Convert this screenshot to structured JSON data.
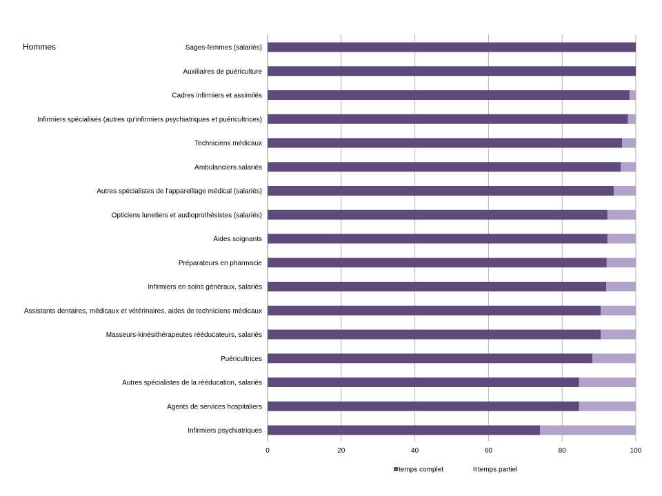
{
  "title": "Hommes",
  "colors": {
    "temps_complet": "#5e4a7d",
    "temps_partiel": "#b1a3c9",
    "grid": "#b3b3b3",
    "axis": "#8c8c8c"
  },
  "chart_data": {
    "type": "bar",
    "orientation": "horizontal",
    "stacked": true,
    "title": "Hommes",
    "xlim": [
      0,
      100
    ],
    "xticks": [
      0,
      20,
      40,
      60,
      80,
      100
    ],
    "grid": true,
    "legend_position": "bottom",
    "categories": [
      "Sages-femmes (salariés)",
      "Auxiliaires de puériculture",
      "Cadres infirmiers et assimilés",
      "Infirmiers spécialisés (autres qu'infirmiers psychiatriques et puéricultrices)",
      "Techniciens médicaux",
      "Ambulanciers salariés",
      "Autres spécialistes de l'appareillage médical (salariés)",
      "Opticiens lunetiers et audioprothésistes (salariés)",
      "Aides soignants",
      "Préparateurs en pharmacie",
      "Infirmiers en soins généraux, salariés",
      "Assistants dentaires, médicaux et vétérinaires, aides de techniciens médicaux",
      "Masseurs-kinésithérapeutes rééducateurs, salariés",
      "Puéricultrices",
      "Autres spécialistes de la rééducation, salariés",
      "Agents de services hospitaliers",
      "Infirmiers psychiatriques"
    ],
    "series": [
      {
        "name": "temps complet",
        "values": [
          100,
          100,
          98.3,
          97.9,
          96.3,
          95.9,
          94,
          92.3,
          92.3,
          92.1,
          92,
          90.5,
          90.5,
          88.2,
          84.6,
          84.6,
          74
        ]
      },
      {
        "name": "temps partiel",
        "values": [
          0,
          0,
          1.7,
          2.1,
          3.7,
          4.1,
          6,
          7.7,
          7.7,
          7.9,
          8,
          9.5,
          9.5,
          11.8,
          15.4,
          15.4,
          26
        ]
      }
    ]
  }
}
